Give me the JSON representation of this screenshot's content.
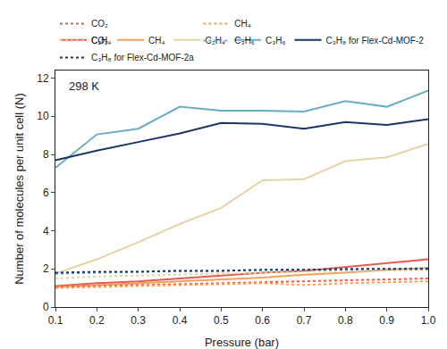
{
  "chart_data": {
    "type": "line",
    "xlabel": "Pressure (bar)",
    "ylabel": "Number of molecules per unit cell (N)",
    "annotations": [
      "298 K"
    ],
    "x": [
      0.1,
      0.2,
      0.3,
      0.4,
      0.5,
      0.6,
      0.7,
      0.8,
      0.9,
      1.0
    ],
    "xlim": [
      0.1,
      1.0
    ],
    "xticks": [
      0.1,
      0.2,
      0.3,
      0.4,
      0.5,
      0.6,
      0.7,
      0.8,
      0.9,
      {
        "value": 1.0,
        "label": "1.0"
      }
    ],
    "ylim": [
      0,
      12.4
    ],
    "yticks": [
      0,
      2,
      4,
      6,
      8,
      10,
      12
    ],
    "grid": false,
    "legend": "top",
    "series": [
      {
        "name": "CO₂",
        "color": "#e85a4f",
        "line_style": "solid",
        "values": [
          1.1,
          1.25,
          1.35,
          1.5,
          1.65,
          1.8,
          1.9,
          2.1,
          2.3,
          2.5
        ]
      },
      {
        "name": "CH₄",
        "color": "#f5a05a",
        "line_style": "solid",
        "values": [
          1.05,
          1.15,
          1.25,
          1.35,
          1.45,
          1.55,
          1.7,
          1.8,
          1.95,
          2.05
        ]
      },
      {
        "name": "C₂H₄",
        "color": "#e6d3a3",
        "line_style": "solid",
        "values": [
          1.75,
          2.5,
          3.4,
          4.35,
          5.2,
          6.65,
          6.7,
          7.65,
          7.85,
          8.55
        ]
      },
      {
        "name": "C₃H₆",
        "color": "#6aacc4",
        "line_style": "solid",
        "values": [
          7.3,
          9.05,
          9.35,
          10.5,
          10.3,
          10.3,
          10.25,
          10.8,
          10.5,
          11.35
        ]
      },
      {
        "name": "C₃H₈ for Flex-Cd-MOF-2",
        "color": "#1b3567",
        "line_style": "solid",
        "values": [
          7.7,
          8.2,
          8.65,
          9.1,
          9.65,
          9.6,
          9.35,
          9.7,
          9.55,
          9.85
        ]
      },
      {
        "name": "CO₂",
        "color": "#e85a4f",
        "line_style": "dotted",
        "values": [
          1.05,
          1.1,
          1.15,
          1.2,
          1.25,
          1.3,
          1.35,
          1.4,
          1.45,
          1.5
        ]
      },
      {
        "name": "CH₄",
        "color": "#f5a05a",
        "line_style": "dotted",
        "values": [
          1.0,
          1.05,
          1.1,
          1.15,
          1.2,
          1.25,
          1.15,
          1.25,
          1.3,
          1.35
        ]
      },
      {
        "name": "C₂H₄",
        "color": "#e6d3a3",
        "line_style": "dotted",
        "values": [
          1.5,
          1.6,
          1.65,
          1.7,
          1.75,
          1.8,
          1.85,
          1.9,
          1.9,
          1.95
        ]
      },
      {
        "name": "C₃H₆",
        "color": "#6aacc4",
        "line_style": "dotted",
        "values": [
          1.75,
          1.8,
          1.85,
          1.9,
          1.9,
          1.95,
          1.95,
          1.95,
          2.0,
          2.05
        ]
      },
      {
        "name": "C₃H₈ for Flex-Cd-MOF-2a",
        "color": "#1b3567",
        "line_style": "dotted",
        "values": [
          1.8,
          1.85,
          1.85,
          1.9,
          1.9,
          1.95,
          1.95,
          2.0,
          2.0,
          2.0
        ]
      }
    ]
  }
}
